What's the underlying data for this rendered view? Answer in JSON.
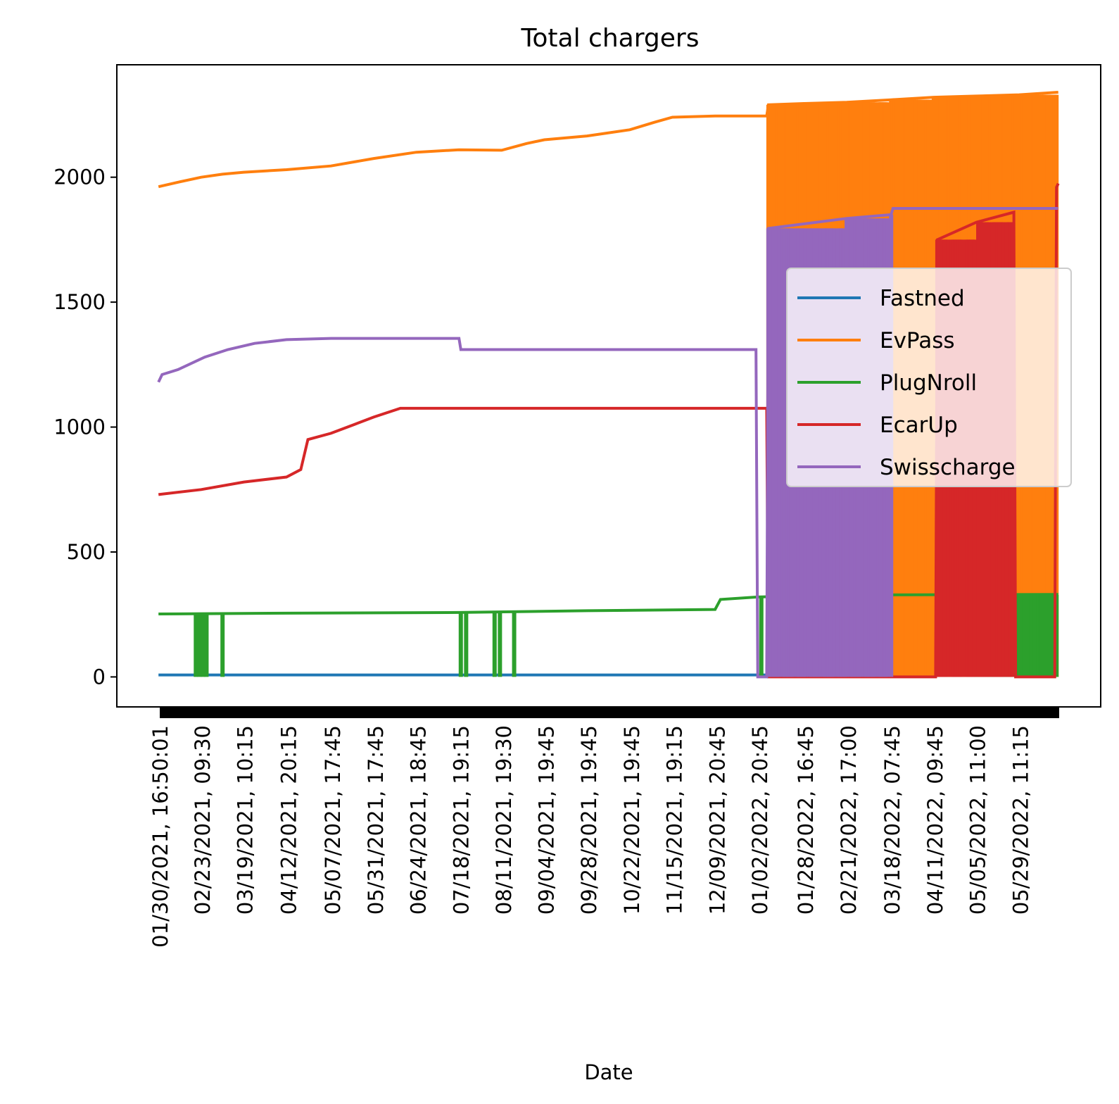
{
  "chart_data": {
    "type": "line",
    "title": "Total chargers",
    "xlabel": "Date",
    "ylabel": "",
    "ylim": [
      -120,
      2450
    ],
    "x_range": [
      "01/30/2021, 16:50:01",
      "06/20/2022, 12:00"
    ],
    "grid": false,
    "legend_placement": "center-right",
    "x_ticks": [
      {
        "label": "01/30/2021, 16:50:01",
        "x": "2021-01-30T16:50:01"
      },
      {
        "label": "02/23/2021, 09:30",
        "x": "2021-02-23T09:30"
      },
      {
        "label": "03/19/2021, 10:15",
        "x": "2021-03-19T10:15"
      },
      {
        "label": "04/12/2021, 20:15",
        "x": "2021-04-12T20:15"
      },
      {
        "label": "05/07/2021, 17:45",
        "x": "2021-05-07T17:45"
      },
      {
        "label": "05/31/2021, 17:45",
        "x": "2021-05-31T17:45"
      },
      {
        "label": "06/24/2021, 18:45",
        "x": "2021-06-24T18:45"
      },
      {
        "label": "07/18/2021, 19:15",
        "x": "2021-07-18T19:15"
      },
      {
        "label": "08/11/2021, 19:30",
        "x": "2021-08-11T19:30"
      },
      {
        "label": "09/04/2021, 19:45",
        "x": "2021-09-04T19:45"
      },
      {
        "label": "09/28/2021, 19:45",
        "x": "2021-09-28T19:45"
      },
      {
        "label": "10/22/2021, 19:45",
        "x": "2021-10-22T19:45"
      },
      {
        "label": "11/15/2021, 19:15",
        "x": "2021-11-15T19:15"
      },
      {
        "label": "12/09/2021, 20:45",
        "x": "2021-12-09T20:45"
      },
      {
        "label": "01/02/2022, 20:45",
        "x": "2022-01-02T20:45"
      },
      {
        "label": "01/28/2022, 16:45",
        "x": "2022-01-28T16:45"
      },
      {
        "label": "02/21/2022, 17:00",
        "x": "2022-02-21T17:00"
      },
      {
        "label": "03/18/2022, 07:45",
        "x": "2022-03-18T07:45"
      },
      {
        "label": "04/11/2022, 09:45",
        "x": "2022-04-11T09:45"
      },
      {
        "label": "05/05/2022, 11:00",
        "x": "2022-05-05T11:00"
      },
      {
        "label": "05/29/2022, 11:15",
        "x": "2022-05-29T11:15"
      }
    ],
    "y_ticks": [
      0,
      500,
      1000,
      1500,
      2000
    ],
    "series": [
      {
        "name": "Fastned",
        "color": "#1f77b4",
        "points": [
          [
            "2021-01-30",
            8
          ],
          [
            "2022-06-20",
            8
          ]
        ]
      },
      {
        "name": "EvPass",
        "color": "#ff7f0e",
        "points": [
          [
            "2021-01-30",
            1962
          ],
          [
            "2021-02-10",
            1980
          ],
          [
            "2021-02-23",
            2000
          ],
          [
            "2021-03-07",
            2012
          ],
          [
            "2021-03-19",
            2020
          ],
          [
            "2021-04-12",
            2030
          ],
          [
            "2021-05-07",
            2045
          ],
          [
            "2021-05-31",
            2075
          ],
          [
            "2021-06-24",
            2100
          ],
          [
            "2021-07-18",
            2110
          ],
          [
            "2021-08-11",
            2108
          ],
          [
            "2021-08-25",
            2135
          ],
          [
            "2021-09-04",
            2150
          ],
          [
            "2021-09-28",
            2165
          ],
          [
            "2021-10-22",
            2190
          ],
          [
            "2021-11-05",
            2220
          ],
          [
            "2021-11-15",
            2240
          ],
          [
            "2021-12-09",
            2245
          ],
          [
            "2022-01-02",
            2245
          ],
          [
            "2022-01-07",
            2245
          ],
          [
            "2022-01-08",
            2290
          ],
          [
            "2022-01-28",
            2295
          ],
          [
            "2022-02-21",
            2300
          ],
          [
            "2022-03-18",
            2310
          ],
          [
            "2022-04-11",
            2320
          ],
          [
            "2022-05-05",
            2325
          ],
          [
            "2022-05-29",
            2330
          ],
          [
            "2022-06-20",
            2340
          ]
        ],
        "dropouts_to": 0,
        "dropout_range": [
          "2022-01-08",
          "2022-06-20"
        ]
      },
      {
        "name": "PlugNroll",
        "color": "#2ca02c",
        "points": [
          [
            "2021-01-30",
            252
          ],
          [
            "2021-04-12",
            255
          ],
          [
            "2021-07-18",
            258
          ],
          [
            "2021-09-28",
            265
          ],
          [
            "2021-12-09",
            270
          ],
          [
            "2021-12-12",
            310
          ],
          [
            "2022-01-02",
            320
          ],
          [
            "2022-02-21",
            328
          ],
          [
            "2022-06-20",
            330
          ]
        ],
        "dropouts_to": 0,
        "dropout_dates": [
          "2021-02-20",
          "2021-02-22",
          "2021-02-24",
          "2021-02-26",
          "2021-03-07",
          "2021-07-19",
          "2021-07-22",
          "2021-08-07",
          "2021-08-10",
          "2021-08-18",
          "2022-01-04",
          "2022-05-05",
          "2022-05-12"
        ],
        "dropout_block": [
          "2022-05-14",
          "2022-06-19"
        ]
      },
      {
        "name": "EcarUp",
        "color": "#d62728",
        "points": [
          [
            "2021-01-30",
            730
          ],
          [
            "2021-02-23",
            750
          ],
          [
            "2021-03-19",
            780
          ],
          [
            "2021-04-12",
            800
          ],
          [
            "2021-04-20",
            830
          ],
          [
            "2021-04-24",
            950
          ],
          [
            "2021-05-07",
            975
          ],
          [
            "2021-05-20",
            1010
          ],
          [
            "2021-05-31",
            1040
          ],
          [
            "2021-06-15",
            1075
          ],
          [
            "2022-01-07",
            1075
          ],
          [
            "2022-01-08",
            0
          ],
          [
            "2022-04-12",
            0
          ],
          [
            "2022-04-13",
            1750
          ],
          [
            "2022-05-05",
            1820
          ],
          [
            "2022-05-26",
            1860
          ],
          [
            "2022-05-27",
            0
          ],
          [
            "2022-06-18",
            0
          ],
          [
            "2022-06-19",
            1960
          ],
          [
            "2022-06-20",
            1975
          ]
        ],
        "dropouts_to": 0,
        "dropout_range": [
          "2022-04-13",
          "2022-05-26"
        ]
      },
      {
        "name": "Swisscharge",
        "color": "#9467bd",
        "points": [
          [
            "2021-01-30",
            1180
          ],
          [
            "2021-02-01",
            1210
          ],
          [
            "2021-02-10",
            1230
          ],
          [
            "2021-02-25",
            1280
          ],
          [
            "2021-03-10",
            1310
          ],
          [
            "2021-03-25",
            1335
          ],
          [
            "2021-04-12",
            1350
          ],
          [
            "2021-05-07",
            1355
          ],
          [
            "2021-07-18",
            1355
          ],
          [
            "2021-07-19",
            1310
          ],
          [
            "2022-01-01",
            1310
          ],
          [
            "2022-01-02",
            0
          ],
          [
            "2022-01-07",
            0
          ],
          [
            "2022-01-08",
            1795
          ],
          [
            "2022-02-21",
            1835
          ],
          [
            "2022-03-18",
            1850
          ],
          [
            "2022-03-19",
            1875
          ],
          [
            "2022-06-20",
            1875
          ]
        ],
        "dropouts_to": 0,
        "dropout_range": [
          "2022-01-08",
          "2022-03-18"
        ]
      }
    ]
  }
}
